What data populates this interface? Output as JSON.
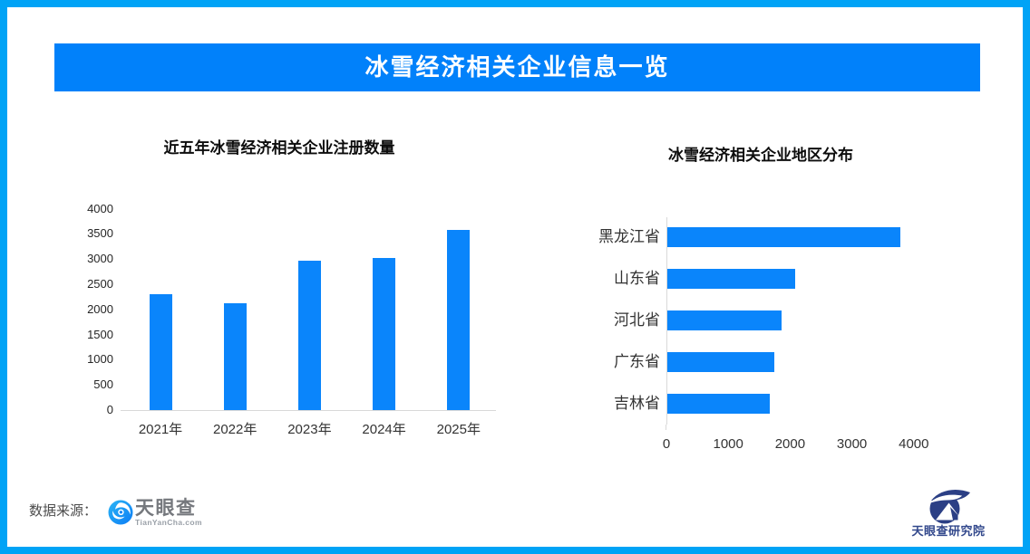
{
  "banner": {
    "title": "冰雪经济相关企业信息一览"
  },
  "chart_data": [
    {
      "type": "bar",
      "orientation": "vertical",
      "title": "近五年冰雪经济相关企业注册数量",
      "categories": [
        "2021年",
        "2022年",
        "2023年",
        "2024年",
        "2025年"
      ],
      "values": [
        2300,
        2130,
        2960,
        3030,
        3580
      ],
      "yticks": [
        0,
        500,
        1000,
        1500,
        2000,
        2500,
        3000,
        3500,
        4000
      ],
      "ylim": [
        0,
        4000
      ],
      "xlabel": "",
      "ylabel": "",
      "grid": false,
      "legend": false,
      "bar_color": "#0a85fb"
    },
    {
      "type": "bar",
      "orientation": "horizontal",
      "title": "冰雪经济相关企业地区分布",
      "categories": [
        "黑龙江省",
        "山东省",
        "河北省",
        "广东省",
        "吉林省"
      ],
      "values": [
        3770,
        2070,
        1850,
        1730,
        1660
      ],
      "xticks": [
        0,
        1000,
        2000,
        3000,
        4000
      ],
      "xlim": [
        0,
        4000
      ],
      "xlabel": "",
      "ylabel": "",
      "grid": false,
      "legend": false,
      "bar_color": "#0a85fb"
    }
  ],
  "footer": {
    "source_label": "数据来源：",
    "tianyancha": {
      "name": "天眼查",
      "domain": "TianYanCha.com"
    },
    "institute": {
      "name": "天眼查研究院"
    }
  },
  "colors": {
    "page_border": "#00a3f6",
    "banner_bg": "#0181fa",
    "bar_blue": "#0a85fb",
    "axis_line": "#d9d9d9"
  }
}
